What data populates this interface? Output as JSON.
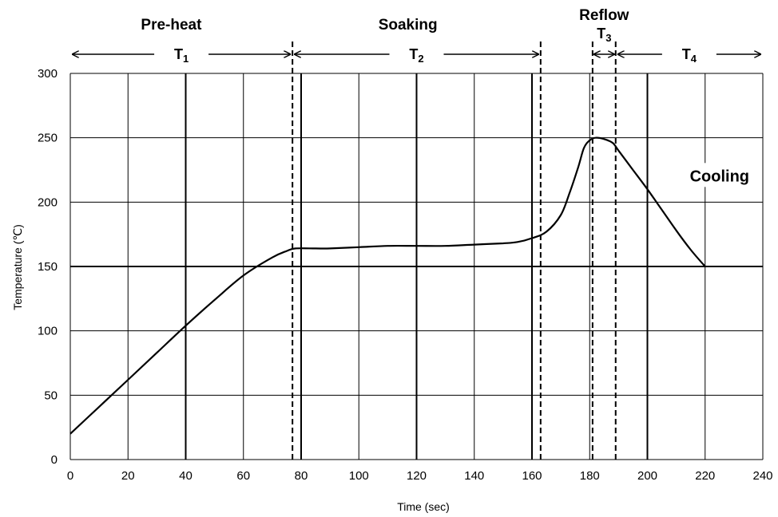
{
  "chart_data": {
    "type": "line",
    "title": "",
    "xlabel": "Time (sec)",
    "ylabel": "Temperature (℃)",
    "xlim": [
      0,
      240
    ],
    "ylim": [
      0,
      300
    ],
    "x_ticks": [
      "0",
      "20",
      "40",
      "60",
      "80",
      "100",
      "120",
      "140",
      "160",
      "180",
      "200",
      "220",
      "240"
    ],
    "y_ticks": [
      "0",
      "50",
      "100",
      "150",
      "200",
      "250",
      "300"
    ],
    "grid": true,
    "series": [
      {
        "name": "",
        "color": "#000000",
        "x": [
          0,
          10,
          20,
          30,
          40,
          50,
          60,
          70,
          75,
          78,
          85,
          90,
          100,
          110,
          120,
          130,
          140,
          150,
          155,
          160,
          165,
          170,
          173,
          176,
          178,
          180,
          182,
          185,
          188,
          190,
          195,
          200,
          205,
          210,
          215,
          220
        ],
        "y": [
          20,
          41,
          62,
          83,
          104,
          124,
          143,
          157,
          162,
          164,
          164,
          164,
          165,
          166,
          166,
          166,
          167,
          168,
          169,
          172,
          177,
          190,
          207,
          227,
          242,
          248,
          250,
          249,
          246,
          240,
          225,
          210,
          194,
          178,
          163,
          150
        ]
      }
    ],
    "phase_boundaries": [
      77,
      163,
      181,
      189
    ],
    "phases": [
      {
        "label": "Pre-heat",
        "x": 35
      },
      {
        "label": "Soaking",
        "x": 117
      },
      {
        "label": "Reflow",
        "x": 185
      }
    ],
    "periods": [
      {
        "label": "T",
        "sub": "1",
        "start": 0,
        "end": 77
      },
      {
        "label": "T",
        "sub": "2",
        "start": 77,
        "end": 163
      },
      {
        "label": "T",
        "sub": "3",
        "start": 181,
        "end": 189
      },
      {
        "label": "T",
        "sub": "4",
        "start": 189,
        "end": 240
      }
    ],
    "annotations": [
      {
        "text": "Cooling",
        "x": 225,
        "y": 218
      }
    ]
  }
}
